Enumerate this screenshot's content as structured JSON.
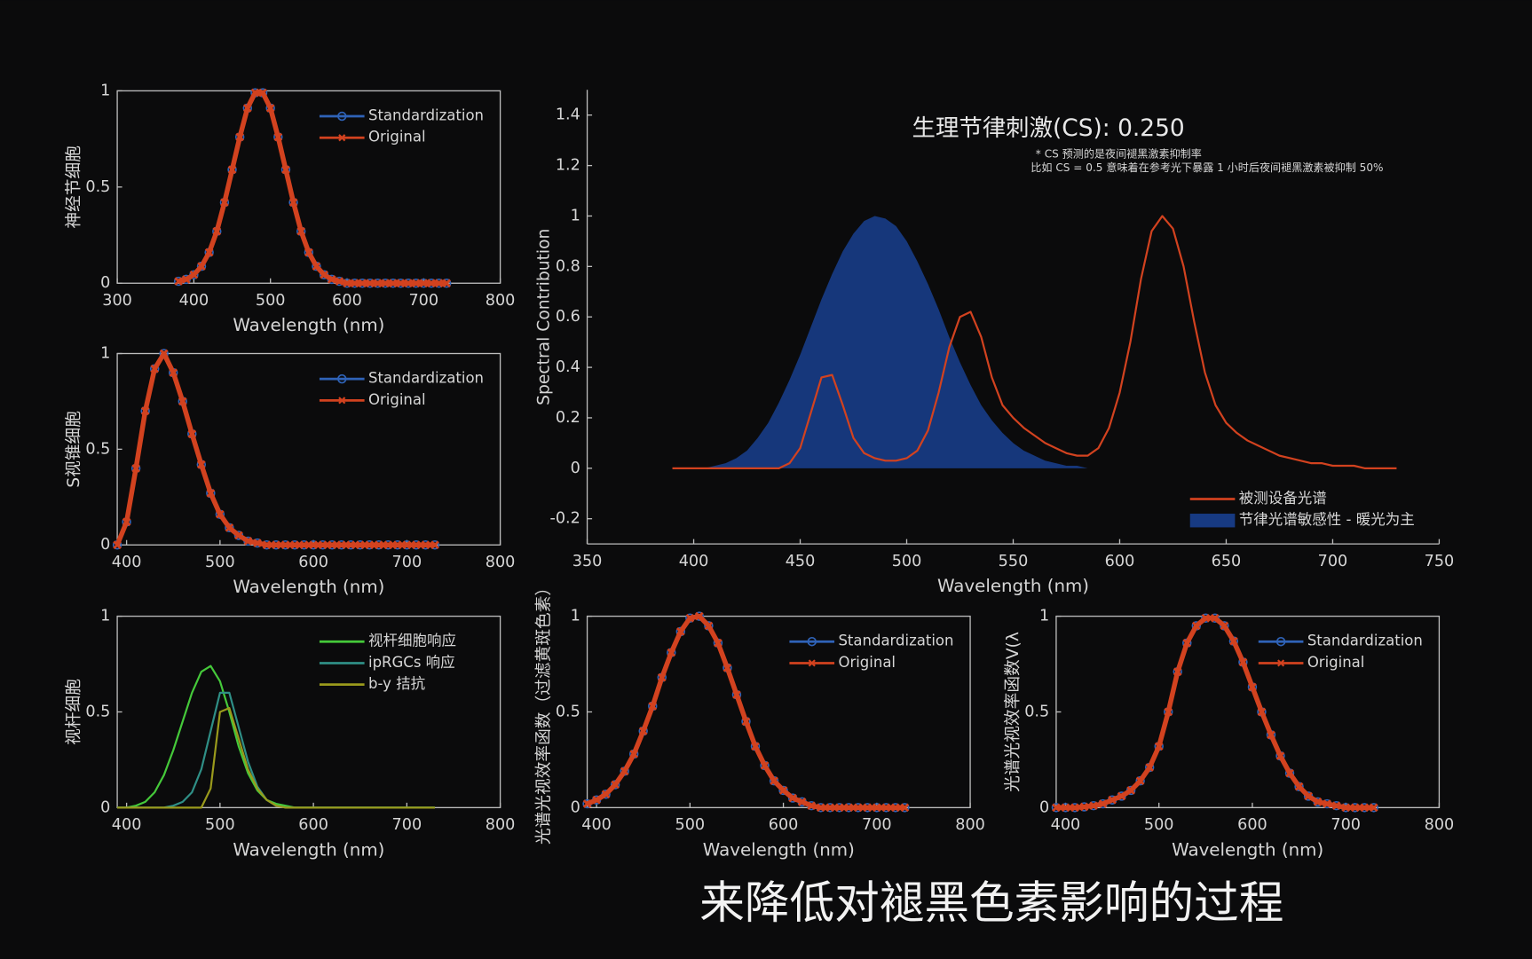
{
  "caption": "来降低对褪黑色素影响的过程",
  "chart_data": [
    {
      "type": "line",
      "ylabel": "神经节细胞",
      "xlabel": "Wavelength (nm)",
      "box": true,
      "legend": "upper right",
      "xlim": [
        300,
        800
      ],
      "xticks": [
        300,
        400,
        500,
        600,
        700,
        800
      ],
      "ylim": [
        0,
        1
      ],
      "yticks": [
        0,
        0.5,
        1
      ],
      "x": [
        380,
        390,
        400,
        410,
        420,
        430,
        440,
        450,
        460,
        470,
        480,
        490,
        500,
        510,
        520,
        530,
        540,
        550,
        560,
        570,
        580,
        590,
        600,
        610,
        620,
        630,
        640,
        650,
        660,
        670,
        680,
        690,
        700,
        710,
        720,
        730
      ],
      "series": [
        {
          "name": "Standardization",
          "color": "#2f63b8",
          "marker": "o",
          "values": [
            0.01,
            0.02,
            0.044,
            0.088,
            0.16,
            0.27,
            0.42,
            0.59,
            0.76,
            0.91,
            0.99,
            0.99,
            0.91,
            0.76,
            0.59,
            0.42,
            0.27,
            0.16,
            0.088,
            0.044,
            0.02,
            0.01,
            0,
            0,
            0,
            0,
            0,
            0,
            0,
            0,
            0,
            0,
            0,
            0,
            0,
            0
          ]
        },
        {
          "name": "Original",
          "color": "#d2421f",
          "marker": "x",
          "values": [
            0.01,
            0.02,
            0.044,
            0.088,
            0.16,
            0.27,
            0.42,
            0.59,
            0.76,
            0.91,
            0.99,
            0.99,
            0.91,
            0.76,
            0.59,
            0.42,
            0.27,
            0.16,
            0.088,
            0.044,
            0.02,
            0.01,
            0,
            0,
            0,
            0,
            0,
            0,
            0,
            0,
            0,
            0,
            0,
            0,
            0,
            0
          ]
        }
      ]
    },
    {
      "type": "line",
      "ylabel": "S视锥细胞",
      "xlabel": "Wavelength (nm)",
      "box": true,
      "legend": "upper right",
      "xlim": [
        390,
        800
      ],
      "xticks": [
        400,
        500,
        600,
        700,
        800
      ],
      "ylim": [
        0,
        1
      ],
      "yticks": [
        0,
        0.5,
        1
      ],
      "x": [
        390,
        400,
        410,
        420,
        430,
        440,
        450,
        460,
        470,
        480,
        490,
        500,
        510,
        520,
        530,
        540,
        550,
        560,
        570,
        580,
        590,
        600,
        610,
        620,
        630,
        640,
        650,
        660,
        670,
        680,
        690,
        700,
        710,
        720,
        730
      ],
      "series": [
        {
          "name": "Standardization",
          "color": "#2f63b8",
          "marker": "o",
          "values": [
            0,
            0.12,
            0.4,
            0.7,
            0.92,
            1,
            0.9,
            0.75,
            0.58,
            0.42,
            0.27,
            0.16,
            0.09,
            0.05,
            0.02,
            0.01,
            0,
            0,
            0,
            0,
            0,
            0,
            0,
            0,
            0,
            0,
            0,
            0,
            0,
            0,
            0,
            0,
            0,
            0,
            0
          ]
        },
        {
          "name": "Original",
          "color": "#d2421f",
          "marker": "x",
          "values": [
            0,
            0.12,
            0.4,
            0.7,
            0.92,
            1,
            0.9,
            0.75,
            0.58,
            0.42,
            0.27,
            0.16,
            0.09,
            0.05,
            0.02,
            0.01,
            0,
            0,
            0,
            0,
            0,
            0,
            0,
            0,
            0,
            0,
            0,
            0,
            0,
            0,
            0,
            0,
            0,
            0,
            0
          ]
        }
      ]
    },
    {
      "type": "line",
      "ylabel": "视杆细胞",
      "xlabel": "Wavelength (nm)",
      "box": true,
      "legend": "upper right",
      "xlim": [
        390,
        800
      ],
      "xticks": [
        400,
        500,
        600,
        700,
        800
      ],
      "ylim": [
        0,
        1
      ],
      "yticks": [
        0,
        0.5,
        1
      ],
      "x": [
        390,
        400,
        410,
        420,
        430,
        440,
        450,
        460,
        470,
        480,
        490,
        500,
        510,
        520,
        530,
        540,
        550,
        560,
        570,
        580,
        590,
        600,
        610,
        620,
        630,
        640,
        650,
        660,
        670,
        680,
        690,
        700,
        710,
        720,
        730
      ],
      "series": [
        {
          "name": "视杆细胞响应",
          "color": "#45c93a",
          "values": [
            0,
            0,
            0.01,
            0.03,
            0.08,
            0.17,
            0.3,
            0.45,
            0.6,
            0.71,
            0.74,
            0.66,
            0.5,
            0.32,
            0.18,
            0.09,
            0.04,
            0.02,
            0.01,
            0,
            0,
            0,
            0,
            0,
            0,
            0,
            0,
            0,
            0,
            0,
            0,
            0,
            0,
            0,
            0
          ]
        },
        {
          "name": "ipRGCs 响应",
          "color": "#2f8f86",
          "values": [
            0,
            0,
            0,
            0,
            0,
            0,
            0.01,
            0.03,
            0.08,
            0.2,
            0.4,
            0.6,
            0.6,
            0.42,
            0.24,
            0.11,
            0.04,
            0.01,
            0,
            0,
            0,
            0,
            0,
            0,
            0,
            0,
            0,
            0,
            0,
            0,
            0,
            0,
            0,
            0,
            0
          ]
        },
        {
          "name": "b-y 拮抗",
          "color": "#9a9a1c",
          "values": [
            0,
            0,
            0,
            0,
            0,
            0,
            0,
            0,
            0,
            0,
            0.1,
            0.5,
            0.52,
            0.36,
            0.2,
            0.1,
            0.04,
            0.01,
            0,
            0,
            0,
            0,
            0,
            0,
            0,
            0,
            0,
            0,
            0,
            0,
            0,
            0,
            0,
            0,
            0
          ]
        }
      ]
    },
    {
      "type": "line",
      "title": "生理节律刺激(CS): 0.250",
      "annotations": [
        "* CS 预测的是夜间褪黑激素抑制率",
        "比如 CS = 0.5 意味着在参考光下暴露 1 小时后夜间褪黑激素被抑制 50%"
      ],
      "ylabel": "Spectral Contribution",
      "xlabel": "Wavelength (nm)",
      "box": false,
      "legend": "lower right",
      "xlim": [
        350,
        750
      ],
      "xticks": [
        350,
        400,
        450,
        500,
        550,
        600,
        650,
        700,
        750
      ],
      "ylim": [
        -0.3,
        1.5
      ],
      "yticks": [
        -0.2,
        0,
        0.2,
        0.4,
        0.6,
        0.8,
        1,
        1.2,
        1.4
      ],
      "x": [
        390,
        395,
        400,
        405,
        410,
        415,
        420,
        425,
        430,
        435,
        440,
        445,
        450,
        455,
        460,
        465,
        470,
        475,
        480,
        485,
        490,
        495,
        500,
        505,
        510,
        515,
        520,
        525,
        530,
        535,
        540,
        545,
        550,
        555,
        560,
        565,
        570,
        575,
        580,
        585,
        590,
        595,
        600,
        605,
        610,
        615,
        620,
        625,
        630,
        635,
        640,
        645,
        650,
        655,
        660,
        665,
        670,
        675,
        680,
        685,
        690,
        695,
        700,
        705,
        710,
        715,
        720,
        725,
        730
      ],
      "series": [
        {
          "name": "被测设备光谱",
          "color": "#d2421f",
          "kind": "line",
          "values": [
            0,
            0,
            0,
            0,
            0,
            0,
            0,
            0,
            0,
            0,
            0,
            0.02,
            0.08,
            0.22,
            0.36,
            0.37,
            0.25,
            0.12,
            0.06,
            0.04,
            0.03,
            0.03,
            0.04,
            0.07,
            0.15,
            0.3,
            0.48,
            0.6,
            0.62,
            0.52,
            0.36,
            0.25,
            0.2,
            0.16,
            0.13,
            0.1,
            0.08,
            0.06,
            0.05,
            0.05,
            0.08,
            0.16,
            0.3,
            0.5,
            0.75,
            0.94,
            1,
            0.95,
            0.8,
            0.58,
            0.38,
            0.25,
            0.18,
            0.14,
            0.11,
            0.09,
            0.07,
            0.05,
            0.04,
            0.03,
            0.02,
            0.02,
            0.01,
            0.01,
            0.01,
            0,
            0,
            0,
            0
          ]
        },
        {
          "name": "节律光谱敏感性 - 暖光为主",
          "color": "#173a82",
          "kind": "area",
          "values": [
            0,
            0,
            0,
            0,
            0.01,
            0.02,
            0.04,
            0.07,
            0.12,
            0.18,
            0.26,
            0.35,
            0.45,
            0.56,
            0.67,
            0.77,
            0.86,
            0.93,
            0.98,
            1,
            0.99,
            0.96,
            0.9,
            0.82,
            0.73,
            0.63,
            0.52,
            0.42,
            0.33,
            0.25,
            0.19,
            0.14,
            0.1,
            0.07,
            0.05,
            0.03,
            0.02,
            0.01,
            0.01,
            0,
            0,
            0,
            0,
            0,
            0,
            0,
            0,
            0,
            0,
            0,
            0,
            0,
            0,
            0,
            0,
            0,
            0,
            0,
            0,
            0,
            0,
            0,
            0,
            0,
            0,
            0,
            0,
            0,
            0
          ]
        }
      ]
    },
    {
      "type": "line",
      "ylabel": "光谱光视效率函数（过滤黄斑色素）",
      "xlabel": "Wavelength (nm)",
      "box": true,
      "legend": "upper right",
      "xlim": [
        390,
        800
      ],
      "xticks": [
        400,
        500,
        600,
        700,
        800
      ],
      "ylim": [
        0,
        1
      ],
      "yticks": [
        0,
        0.5,
        1
      ],
      "x": [
        390,
        400,
        410,
        420,
        430,
        440,
        450,
        460,
        470,
        480,
        490,
        500,
        510,
        520,
        530,
        540,
        550,
        560,
        570,
        580,
        590,
        600,
        610,
        620,
        630,
        640,
        650,
        660,
        670,
        680,
        690,
        700,
        710,
        720,
        730
      ],
      "series": [
        {
          "name": "Standardization",
          "color": "#2f63b8",
          "marker": "o",
          "values": [
            0.02,
            0.04,
            0.07,
            0.12,
            0.19,
            0.28,
            0.4,
            0.53,
            0.68,
            0.81,
            0.92,
            0.99,
            1,
            0.95,
            0.86,
            0.73,
            0.59,
            0.45,
            0.32,
            0.22,
            0.14,
            0.09,
            0.05,
            0.03,
            0.01,
            0,
            0,
            0,
            0,
            0,
            0,
            0,
            0,
            0,
            0
          ]
        },
        {
          "name": "Original",
          "color": "#d2421f",
          "marker": "x",
          "values": [
            0.02,
            0.04,
            0.07,
            0.12,
            0.19,
            0.28,
            0.4,
            0.53,
            0.68,
            0.81,
            0.92,
            0.99,
            1,
            0.95,
            0.86,
            0.73,
            0.59,
            0.45,
            0.32,
            0.22,
            0.14,
            0.09,
            0.05,
            0.03,
            0.01,
            0,
            0,
            0,
            0,
            0,
            0,
            0,
            0,
            0,
            0
          ]
        }
      ]
    },
    {
      "type": "line",
      "ylabel": "光谱光视效率函数V(λ",
      "xlabel": "Wavelength (nm)",
      "box": true,
      "legend": "upper right",
      "xlim": [
        390,
        800
      ],
      "xticks": [
        400,
        500,
        600,
        700,
        800
      ],
      "ylim": [
        0,
        1
      ],
      "yticks": [
        0,
        0.5,
        1
      ],
      "x": [
        390,
        400,
        410,
        420,
        430,
        440,
        450,
        460,
        470,
        480,
        490,
        500,
        510,
        520,
        530,
        540,
        550,
        560,
        570,
        580,
        590,
        600,
        610,
        620,
        630,
        640,
        650,
        660,
        670,
        680,
        690,
        700,
        710,
        720,
        730
      ],
      "series": [
        {
          "name": "Standardization",
          "color": "#2f63b8",
          "marker": "o",
          "values": [
            0,
            0,
            0,
            0.004,
            0.01,
            0.02,
            0.04,
            0.06,
            0.09,
            0.14,
            0.21,
            0.32,
            0.5,
            0.71,
            0.86,
            0.95,
            0.99,
            0.99,
            0.95,
            0.87,
            0.76,
            0.63,
            0.5,
            0.38,
            0.27,
            0.18,
            0.11,
            0.06,
            0.03,
            0.02,
            0.01,
            0,
            0,
            0,
            0
          ]
        },
        {
          "name": "Original",
          "color": "#d2421f",
          "marker": "x",
          "values": [
            0,
            0,
            0,
            0.004,
            0.01,
            0.02,
            0.04,
            0.06,
            0.09,
            0.14,
            0.21,
            0.32,
            0.5,
            0.71,
            0.86,
            0.95,
            0.99,
            0.99,
            0.95,
            0.87,
            0.76,
            0.63,
            0.5,
            0.38,
            0.27,
            0.18,
            0.11,
            0.06,
            0.03,
            0.02,
            0.01,
            0,
            0,
            0,
            0
          ]
        }
      ]
    }
  ]
}
